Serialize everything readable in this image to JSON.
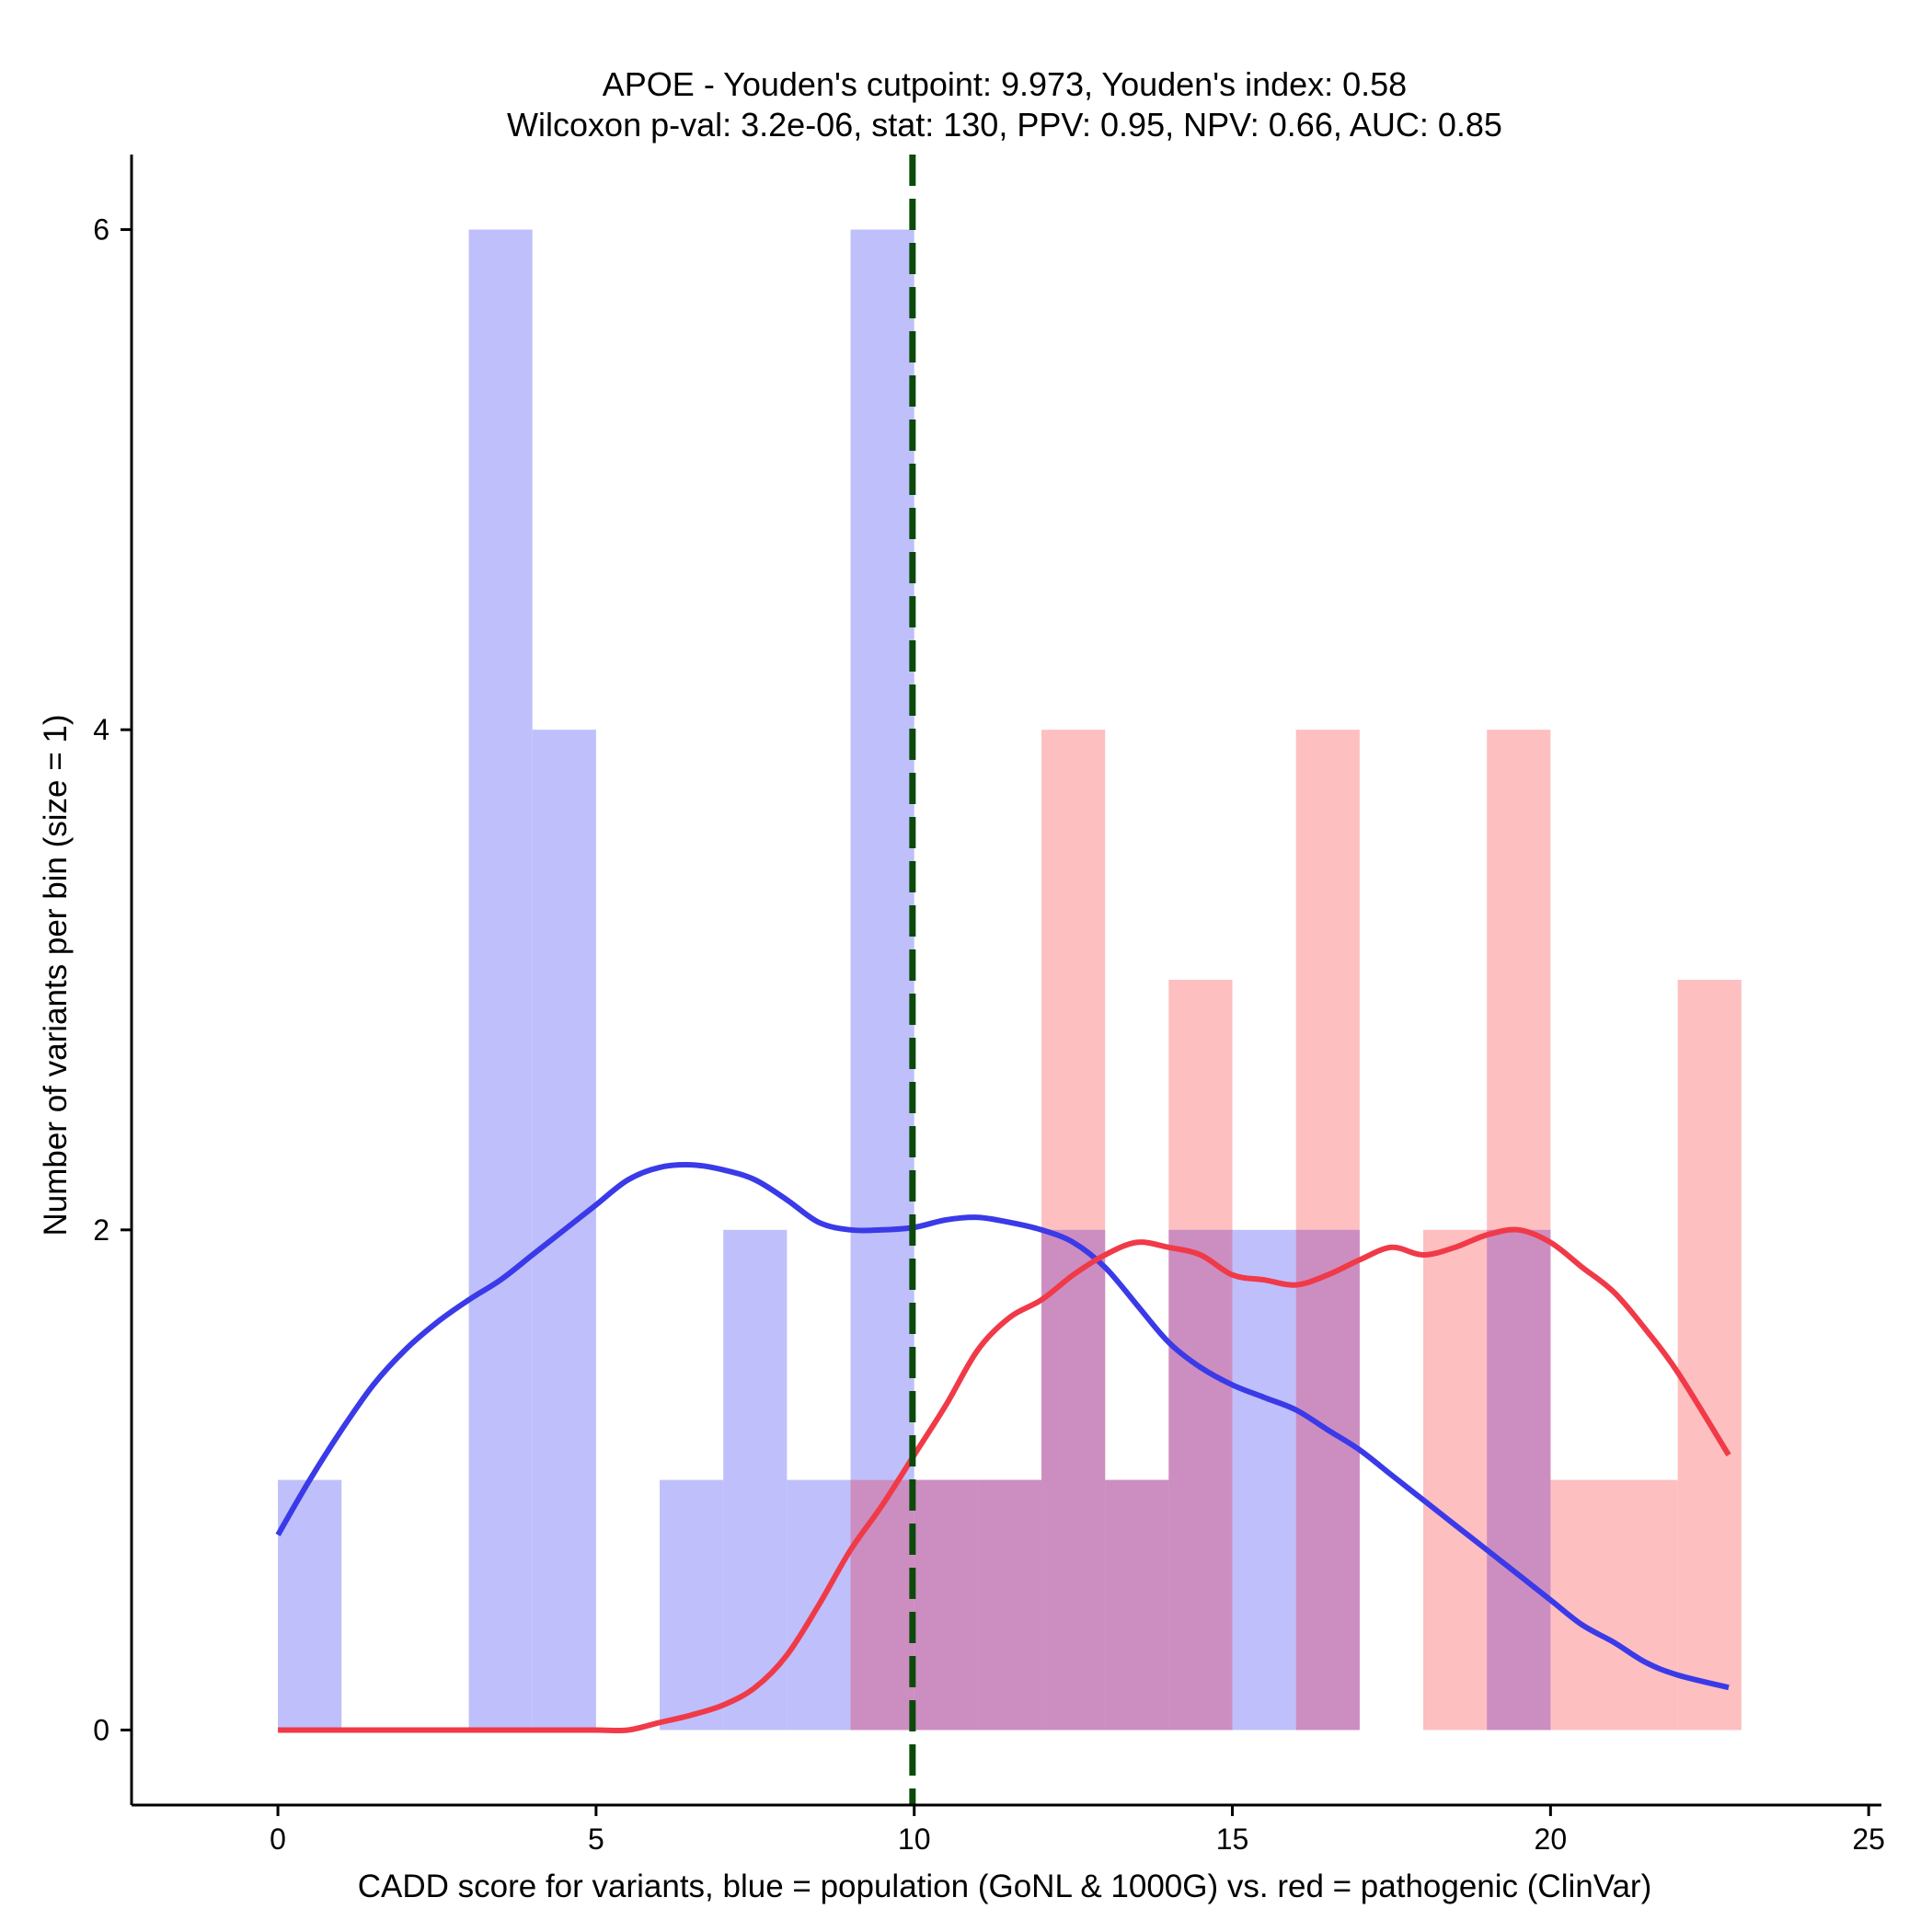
{
  "chart_data": {
    "type": "histogram",
    "title_line1": "APOE - Youden's cutpoint: 9.973, Youden's index: 0.58",
    "title_line2": "Wilcoxon p-val: 3.2e-06, stat: 130, PPV: 0.95, NPV: 0.66, AUC: 0.85",
    "xlabel": "CADD score for variants, blue = population (GoNL & 1000G) vs. red = pathogenic (ClinVar)",
    "ylabel": "Number of variants per bin (size = 1)",
    "xlim": [
      -2.3,
      25.2
    ],
    "ylim": [
      -0.3,
      6.3
    ],
    "x_ticks": [
      0,
      5,
      10,
      15,
      20,
      25
    ],
    "y_ticks": [
      0,
      2,
      4,
      6
    ],
    "bin_size": 1,
    "cutpoint": 9.973,
    "colors": {
      "population_bar": "#bfbffb",
      "pathogenic_bar": "#fdbfc0",
      "overlap_bar": "#cc8ec1",
      "population_line": "#3a3ae8",
      "pathogenic_line": "#f03a48",
      "cutpoint_line": "#0b4a0b"
    },
    "series": [
      {
        "name": "population",
        "bin_starts": [
          0,
          3,
          4,
          6,
          7,
          8,
          9,
          10,
          11,
          12,
          13,
          14,
          15,
          16,
          17,
          18,
          19
        ],
        "counts": [
          1,
          6,
          4,
          1,
          2,
          1,
          6,
          1,
          1,
          2,
          1,
          2,
          2,
          2,
          0,
          0,
          2
        ]
      },
      {
        "name": "pathogenic",
        "bin_starts": [
          9,
          10,
          11,
          12,
          13,
          14,
          15,
          16,
          17,
          18,
          19,
          20,
          21,
          22
        ],
        "counts": [
          1,
          1,
          1,
          4,
          1,
          3,
          0,
          4,
          0,
          2,
          4,
          1,
          1,
          3
        ]
      }
    ],
    "density_curves": [
      {
        "name": "population",
        "x": [
          0,
          0.5,
          1,
          1.5,
          2,
          2.5,
          3,
          3.5,
          4,
          4.5,
          5,
          5.5,
          6,
          6.5,
          7,
          7.5,
          8,
          8.5,
          9,
          9.5,
          10,
          10.5,
          11,
          11.5,
          12,
          12.5,
          13,
          13.5,
          14,
          14.5,
          15,
          15.5,
          16,
          16.5,
          17,
          17.5,
          18,
          18.5,
          19,
          19.5,
          20,
          20.5,
          21,
          21.5,
          22,
          22.8
        ],
        "y": [
          0.78,
          1.0,
          1.2,
          1.38,
          1.52,
          1.63,
          1.72,
          1.8,
          1.9,
          2.0,
          2.1,
          2.2,
          2.25,
          2.26,
          2.24,
          2.2,
          2.12,
          2.03,
          2.0,
          2.0,
          2.01,
          2.04,
          2.05,
          2.03,
          2.0,
          1.95,
          1.85,
          1.7,
          1.55,
          1.45,
          1.38,
          1.33,
          1.28,
          1.2,
          1.12,
          1.02,
          0.92,
          0.82,
          0.72,
          0.62,
          0.52,
          0.42,
          0.35,
          0.27,
          0.22,
          0.17
        ]
      },
      {
        "name": "pathogenic",
        "x": [
          0,
          1,
          2,
          3,
          4,
          5,
          5.5,
          6,
          6.5,
          7,
          7.5,
          8,
          8.5,
          9,
          9.5,
          10,
          10.5,
          11,
          11.5,
          12,
          12.5,
          13,
          13.5,
          14,
          14.5,
          15,
          15.5,
          16,
          16.5,
          17,
          17.5,
          18,
          18.5,
          19,
          19.5,
          20,
          20.5,
          21,
          21.5,
          22,
          22.8
        ],
        "y": [
          0,
          0,
          0,
          0,
          0,
          0,
          0,
          0.03,
          0.06,
          0.1,
          0.17,
          0.3,
          0.5,
          0.72,
          0.9,
          1.1,
          1.3,
          1.52,
          1.65,
          1.72,
          1.82,
          1.9,
          1.95,
          1.93,
          1.9,
          1.82,
          1.8,
          1.78,
          1.82,
          1.88,
          1.93,
          1.9,
          1.93,
          1.98,
          2.0,
          1.95,
          1.85,
          1.75,
          1.6,
          1.43,
          1.1
        ]
      }
    ]
  }
}
